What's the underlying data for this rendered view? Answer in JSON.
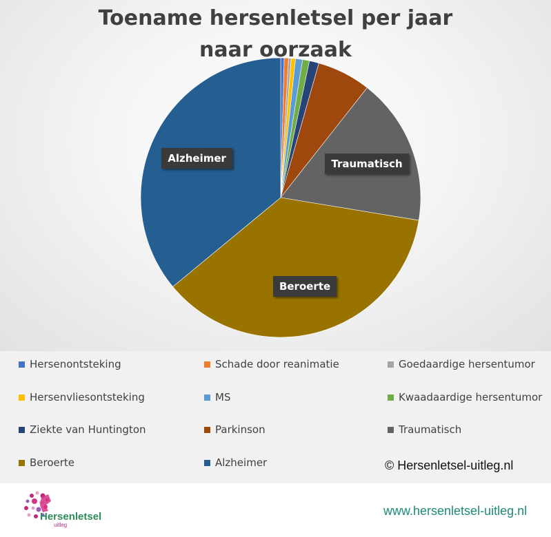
{
  "chart_data": {
    "type": "pie",
    "title": "Toename hersenletsel per jaar naar oorzaak",
    "categories": [
      "Hersenontsteking",
      "Schade door reanimatie",
      "Goedaardige hersentumor",
      "Hersenvliesontsteking",
      "MS",
      "Kwaadaardige hersentumor",
      "Ziekte van Huntington",
      "Parkinson",
      "Traumatisch",
      "Beroerte",
      "Alzheimer"
    ],
    "values": [
      0.4,
      0.5,
      0.3,
      0.5,
      0.8,
      0.8,
      1.1,
      6.2,
      17.0,
      36.4,
      36.0
    ],
    "colors": [
      "#4472c4",
      "#ed7d31",
      "#a5a5a5",
      "#ffc000",
      "#5b9bd5",
      "#70ad47",
      "#264478",
      "#9e480e",
      "#636363",
      "#997300",
      "#255e91"
    ],
    "data_labels": [
      "",
      "",
      "",
      "",
      "",
      "",
      "",
      "",
      "Traumatisch",
      "Beroerte",
      "Alzheimer"
    ],
    "legend_position": "bottom",
    "legend_order": [
      [
        "Hersenontsteking",
        "Schade door reanimatie",
        "Goedaardige hersentumor"
      ],
      [
        "Hersenvliesontsteking",
        "MS",
        "Kwaadaardige hersentumor"
      ],
      [
        "Ziekte van Huntington",
        "Parkinson",
        "Traumatisch"
      ],
      [
        "Beroerte",
        "Alzheimer"
      ]
    ]
  },
  "copyright": "© Hersenletsel-uitleg.nl",
  "footer": {
    "logo_text": "Hersenletsel",
    "logo_sub": "uitleg",
    "website": "www.hersenletsel-uitleg.nl"
  }
}
